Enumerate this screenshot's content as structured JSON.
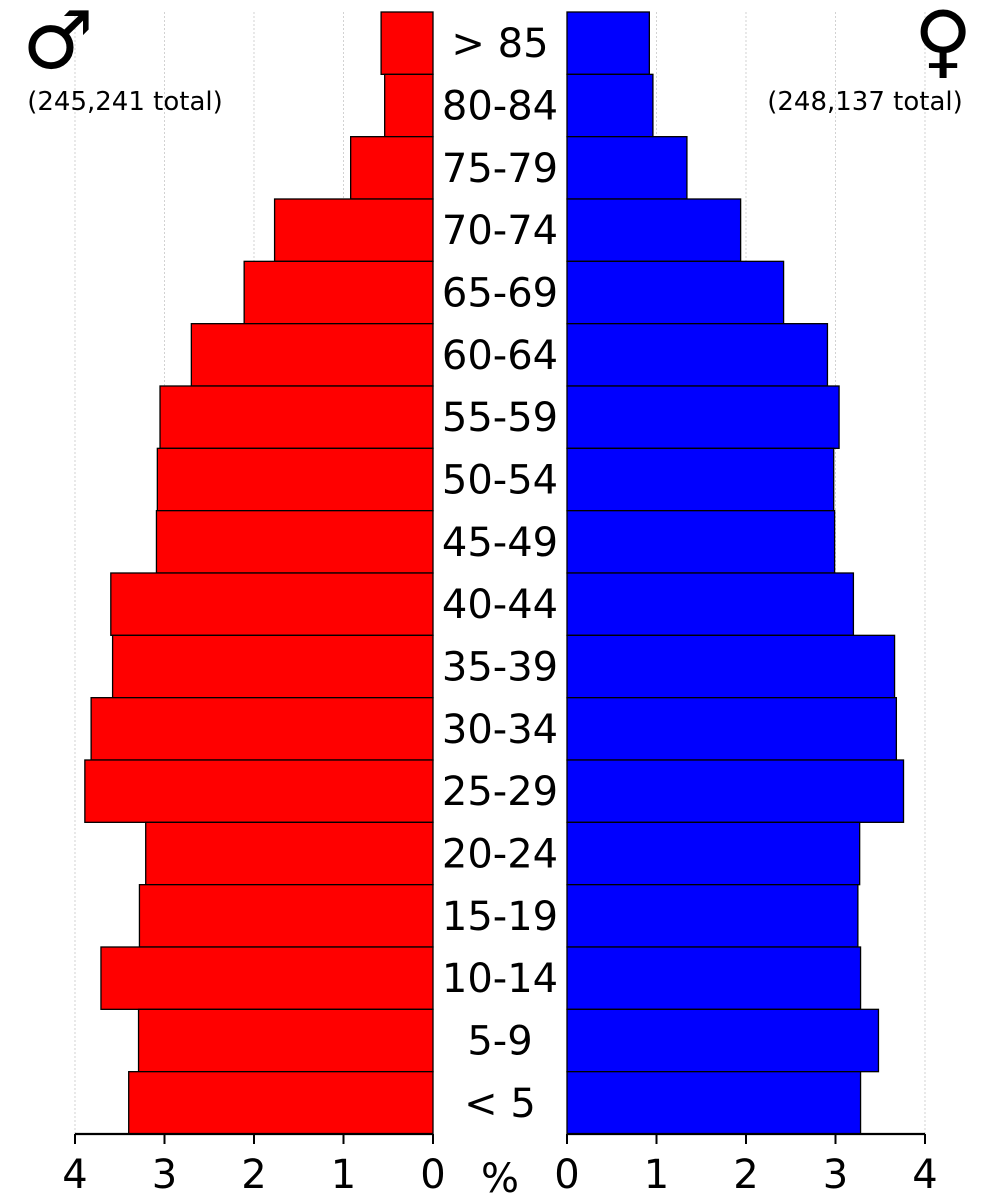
{
  "chart_data": {
    "type": "bar",
    "subtype": "population-pyramid",
    "unit_label": "%",
    "male": {
      "symbol": "♂",
      "total_label": "(245,241 total)",
      "color": "#ff0000"
    },
    "female": {
      "symbol": "♀",
      "total_label": "(248,137 total)",
      "color": "#0000ff"
    },
    "x_range": [
      0,
      4
    ],
    "x_ticks": [
      "4",
      "3",
      "2",
      "1",
      "0",
      "0",
      "1",
      "2",
      "3",
      "4"
    ],
    "grid": true,
    "categories": [
      "> 85",
      "80-84",
      "75-79",
      "70-74",
      "65-69",
      "60-64",
      "55-59",
      "50-54",
      "45-49",
      "40-44",
      "35-39",
      "30-34",
      "25-29",
      "20-24",
      "15-19",
      "10-14",
      "5-9",
      "< 5"
    ],
    "series": [
      {
        "name": "male",
        "values": [
          0.58,
          0.54,
          0.92,
          1.77,
          2.11,
          2.7,
          3.05,
          3.08,
          3.09,
          3.6,
          3.58,
          3.82,
          3.89,
          3.21,
          3.28,
          3.71,
          3.29,
          3.4
        ]
      },
      {
        "name": "female",
        "values": [
          0.92,
          0.96,
          1.34,
          1.94,
          2.42,
          2.91,
          3.04,
          2.98,
          2.99,
          3.2,
          3.66,
          3.68,
          3.76,
          3.27,
          3.25,
          3.28,
          3.48,
          3.28
        ]
      }
    ]
  }
}
